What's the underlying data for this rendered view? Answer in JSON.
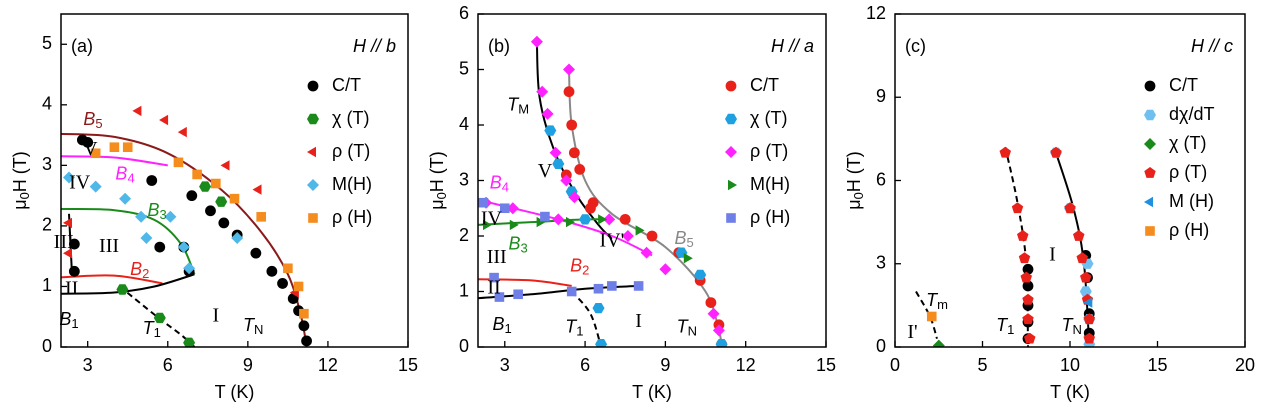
{
  "chart_data": [
    {
      "type": "scatter",
      "title": "(a)",
      "legend_title": "H // b",
      "xlabel": "T (K)",
      "ylabel": {
        "text": "μ",
        "sub": "0",
        "after": "H (T)"
      },
      "xlim": [
        2,
        15
      ],
      "ylim": [
        0,
        5.5
      ],
      "xticks": [
        3,
        6,
        9,
        12,
        15
      ],
      "yticks": [
        0,
        1,
        2,
        3,
        4,
        5
      ],
      "series": [
        {
          "name": "C/T",
          "color": "#000000",
          "marker": "circle",
          "x": [
            2.8,
            3.0,
            5.4,
            6.9,
            7.6,
            8.1,
            8.6,
            9.3,
            9.9,
            10.3,
            10.7,
            10.9,
            11.1,
            11.2,
            2.5,
            2.5,
            5.7,
            6.6,
            6.8
          ],
          "y": [
            3.42,
            3.38,
            2.75,
            2.5,
            2.25,
            2.05,
            1.85,
            1.55,
            1.25,
            1.05,
            0.8,
            0.6,
            0.35,
            0.1,
            1.25,
            1.7,
            1.65,
            1.65,
            1.25
          ]
        },
        {
          "name": "χ (T)",
          "color": "#1a8a1a",
          "marker": "hexagon",
          "x": [
            4.3,
            5.7,
            6.8,
            7.4,
            8.0
          ],
          "y": [
            0.95,
            0.48,
            0.07,
            2.65,
            2.4
          ]
        },
        {
          "name": "ρ (T)",
          "color": "#e8221a",
          "marker": "tri-left",
          "x": [
            4.9,
            5.9,
            6.6,
            8.2,
            9.4,
            10.8,
            2.3,
            2.3
          ],
          "y": [
            3.9,
            3.75,
            3.55,
            3.0,
            2.6,
            0.9,
            1.55,
            2.05
          ]
        },
        {
          "name": "M(H)",
          "color": "#4fb8e8",
          "marker": "diamond",
          "x": [
            2.3,
            3.3,
            4.4,
            5.0,
            5.2,
            6.1,
            6.6,
            6.8,
            8.6
          ],
          "y": [
            2.8,
            2.65,
            2.45,
            2.15,
            1.8,
            2.15,
            1.65,
            1.3,
            1.8
          ]
        },
        {
          "name": "ρ (H)",
          "color": "#f58c1e",
          "marker": "square",
          "x": [
            3.3,
            4.0,
            4.5,
            6.4,
            7.1,
            7.8,
            8.5,
            9.5,
            10.5,
            10.9,
            11.1
          ],
          "y": [
            3.2,
            3.3,
            3.3,
            3.05,
            2.85,
            2.7,
            2.45,
            2.15,
            1.3,
            1.0,
            0.55
          ]
        }
      ],
      "lines": [
        {
          "color": "#8b1a1a",
          "dash": false,
          "x": [
            2,
            4,
            6,
            8,
            9.5,
            10.5,
            11,
            11.2
          ],
          "y": [
            3.52,
            3.47,
            3.2,
            2.6,
            1.9,
            1.2,
            0.5,
            0
          ]
        },
        {
          "color": "#ff22ff",
          "dash": false,
          "x": [
            2,
            4,
            6
          ],
          "y": [
            3.15,
            3.13,
            3.0
          ]
        },
        {
          "color": "#1a8a1a",
          "dash": false,
          "x": [
            2,
            4,
            5.5,
            6.5,
            7.0
          ],
          "y": [
            2.28,
            2.26,
            2.1,
            1.7,
            1.2
          ]
        },
        {
          "color": "#e8221a",
          "dash": false,
          "x": [
            2,
            4,
            5.8
          ],
          "y": [
            1.15,
            1.18,
            1.05
          ]
        },
        {
          "color": "#000000",
          "dash": false,
          "x": [
            2,
            4,
            5.5,
            7.0
          ],
          "y": [
            0.88,
            0.9,
            1.0,
            1.2
          ]
        },
        {
          "color": "#000000",
          "dash": false,
          "x": [
            2.4,
            2.3
          ],
          "y": [
            1.3,
            2.2
          ]
        },
        {
          "color": "#000000",
          "dash": true,
          "x": [
            4.2,
            5.6,
            6.5,
            7.0
          ],
          "y": [
            1.0,
            0.5,
            0.2,
            0
          ]
        }
      ],
      "annotations": [
        {
          "text": "B",
          "sub": "5",
          "color": "#8b1a1a"
        },
        {
          "text": "B",
          "sub": "4",
          "color": "#ff22ff"
        },
        {
          "text": "B",
          "sub": "3",
          "color": "#1a8a1a"
        },
        {
          "text": "B",
          "sub": "2",
          "color": "#e8221a"
        },
        {
          "text": "B",
          "sub": "1",
          "color": "#000000"
        },
        {
          "text": "T",
          "sub": "1",
          "color": "#000000"
        },
        {
          "text": "T",
          "sub": "N",
          "color": "#000000"
        },
        {
          "text": "I",
          "color": "#000000"
        },
        {
          "text": "II",
          "color": "#000000"
        },
        {
          "text": "III",
          "color": "#000000"
        },
        {
          "text": "III",
          "color": "#000000"
        },
        {
          "text": "IV",
          "color": "#000000"
        },
        {
          "text": "V",
          "color": "#000000"
        }
      ]
    },
    {
      "type": "scatter",
      "title": "(b)",
      "legend_title": "H // a",
      "xlabel": "T (K)",
      "ylabel": {
        "text": "μ",
        "sub": "0",
        "after": "H (T)"
      },
      "xlim": [
        2,
        15
      ],
      "ylim": [
        0,
        6
      ],
      "xticks": [
        3,
        6,
        9,
        12,
        15
      ],
      "yticks": [
        0,
        1,
        2,
        3,
        4,
        5,
        6
      ],
      "series": [
        {
          "name": "C/T",
          "color": "#e8221a",
          "marker": "circle",
          "x": [
            5.4,
            5.5,
            5.6,
            5.8,
            6.3,
            7.5,
            8.5,
            9.5,
            10.3,
            10.7,
            11.0,
            11.1,
            5.3,
            6.2
          ],
          "y": [
            4.6,
            4.0,
            3.5,
            3.2,
            2.6,
            2.3,
            2.0,
            1.7,
            1.2,
            0.8,
            0.4,
            0.05,
            3.1,
            2.5
          ]
        },
        {
          "name": "χ (T)",
          "color": "#1fa0e0",
          "marker": "hexagon",
          "x": [
            4.7,
            5.0,
            5.5,
            6.0,
            6.5,
            6.6,
            9.6,
            10.3,
            11.1
          ],
          "y": [
            3.9,
            3.3,
            2.8,
            2.3,
            0.7,
            0.05,
            1.7,
            1.3,
            0.05
          ]
        },
        {
          "name": "ρ (T)",
          "color": "#ff22ff",
          "marker": "diamond",
          "x": [
            4.2,
            5.4,
            4.4,
            4.6,
            4.9,
            5.3,
            5.6,
            6.9,
            7.6,
            8.3,
            9.0,
            10.8,
            11.0,
            2.3,
            3.3,
            5.0
          ],
          "y": [
            5.5,
            5.0,
            4.6,
            4.2,
            3.5,
            3.0,
            2.7,
            2.3,
            2.0,
            1.7,
            1.4,
            0.6,
            0.3,
            2.6,
            2.5,
            2.3
          ]
        },
        {
          "name": "M(H)",
          "color": "#1a8a1a",
          "marker": "tri-right",
          "x": [
            2.3,
            3.3,
            4.3,
            5.4,
            6.6,
            8.0,
            9.8
          ],
          "y": [
            2.2,
            2.2,
            2.25,
            2.25,
            2.3,
            2.1,
            1.6
          ]
        },
        {
          "name": "ρ (H)",
          "color": "#6f7fe8",
          "marker": "square",
          "x": [
            2.2,
            2.6,
            3.0,
            3.5,
            4.5,
            5.5,
            6.5,
            7.0,
            8.0,
            2.8
          ],
          "y": [
            2.6,
            1.25,
            2.5,
            0.95,
            2.35,
            1.0,
            1.05,
            1.1,
            1.1,
            0.9
          ]
        }
      ],
      "lines": [
        {
          "color": "#888888",
          "dash": false,
          "x": [
            5.4,
            5.5,
            6.0,
            7.0,
            9.0,
            10.5,
            11.0,
            11.1
          ],
          "y": [
            5.0,
            4.0,
            3.0,
            2.4,
            1.8,
            1.0,
            0.3,
            0
          ]
        },
        {
          "color": "#000000",
          "dash": false,
          "x": [
            4.2,
            4.3,
            4.8,
            5.6,
            6.5,
            7.0
          ],
          "y": [
            5.5,
            4.5,
            3.6,
            2.8,
            2.2,
            1.95
          ]
        },
        {
          "color": "#ff22ff",
          "dash": false,
          "x": [
            2,
            5,
            7,
            8.5
          ],
          "y": [
            2.65,
            2.3,
            2.0,
            1.65
          ]
        },
        {
          "color": "#1a8a1a",
          "dash": false,
          "x": [
            2,
            4,
            6,
            6.8
          ],
          "y": [
            2.2,
            2.25,
            2.3,
            2.3
          ]
        },
        {
          "color": "#e8221a",
          "dash": false,
          "x": [
            2,
            4,
            5.5
          ],
          "y": [
            1.22,
            1.2,
            1.1
          ]
        },
        {
          "color": "#000000",
          "dash": false,
          "x": [
            2,
            4,
            6,
            8
          ],
          "y": [
            0.88,
            0.95,
            1.05,
            1.1
          ]
        },
        {
          "color": "#000000",
          "dash": true,
          "x": [
            5.5,
            6.2,
            6.6
          ],
          "y": [
            1.0,
            0.6,
            0
          ]
        }
      ],
      "annotations": [
        {
          "text": "T",
          "sub": "M",
          "color": "#000000"
        },
        {
          "text": "V",
          "color": "#000000"
        },
        {
          "text": "B",
          "sub": "4",
          "color": "#ff22ff"
        },
        {
          "text": "IV",
          "color": "#000000"
        },
        {
          "text": "B",
          "sub": "3",
          "color": "#1a8a1a"
        },
        {
          "text": "IV'",
          "color": "#000000"
        },
        {
          "text": "B",
          "sub": "5",
          "color": "#888888"
        },
        {
          "text": "III",
          "color": "#000000"
        },
        {
          "text": "B",
          "sub": "2",
          "color": "#e8221a"
        },
        {
          "text": "II",
          "color": "#000000"
        },
        {
          "text": "B",
          "sub": "1",
          "color": "#000000"
        },
        {
          "text": "T",
          "sub": "1",
          "color": "#000000"
        },
        {
          "text": "I",
          "color": "#000000"
        },
        {
          "text": "T",
          "sub": "N",
          "color": "#000000"
        }
      ]
    },
    {
      "type": "scatter",
      "title": "(c)",
      "legend_title": "H // c",
      "xlabel": "T (K)",
      "ylabel": {
        "text": "μ",
        "sub": "0",
        "after": "H (T)"
      },
      "xlim": [
        0,
        20
      ],
      "ylim": [
        0,
        12
      ],
      "xticks": [
        0,
        5,
        10,
        15,
        20
      ],
      "yticks": [
        0,
        3,
        6,
        9,
        12
      ],
      "series": [
        {
          "name": "C/T",
          "color": "#000000",
          "marker": "circle",
          "x": [
            7.6,
            7.6,
            7.6,
            7.6,
            7.6,
            11.1,
            11.1,
            11.0,
            10.9
          ],
          "y": [
            0.3,
            0.9,
            1.5,
            2.2,
            2.8,
            0.5,
            1.2,
            2.5,
            3.3
          ]
        },
        {
          "name": "dχ/dT",
          "color": "#6fc0f0",
          "marker": "hexagon",
          "x": [
            11.1,
            11.1,
            10.9,
            11.0,
            9.2,
            10.0
          ],
          "y": [
            0.1,
            1.0,
            2.0,
            3.0,
            7.0,
            5.0
          ]
        },
        {
          "name": "χ (T)",
          "color": "#1a8a1a",
          "marker": "diamond",
          "x": [
            2.5
          ],
          "y": [
            0.05
          ]
        },
        {
          "name": "ρ (T)",
          "color": "#e8221a",
          "marker": "pentagon",
          "x": [
            6.3,
            7.0,
            7.3,
            7.4,
            7.5,
            7.6,
            7.6,
            7.7,
            9.2,
            10.0,
            10.5,
            10.7,
            10.9,
            11.0,
            11.1,
            11.1
          ],
          "y": [
            7.0,
            5.0,
            4.0,
            3.2,
            2.5,
            1.7,
            1.0,
            0.3,
            7.0,
            5.0,
            4.0,
            3.2,
            2.5,
            1.7,
            1.0,
            0.3
          ]
        },
        {
          "name": "M (H)",
          "color": "#1f90e0",
          "marker": "tri-left",
          "x": [
            11.1
          ],
          "y": [
            1.6
          ]
        },
        {
          "name": "ρ (H)",
          "color": "#f58c1e",
          "marker": "square",
          "x": [
            2.1
          ],
          "y": [
            1.1
          ]
        }
      ],
      "lines": [
        {
          "color": "#000000",
          "dash": true,
          "x": [
            6.3,
            7.0,
            7.5,
            7.6
          ],
          "y": [
            7.2,
            5.2,
            3.0,
            0
          ]
        },
        {
          "color": "#000000",
          "dash": false,
          "x": [
            9.2,
            10.2,
            10.8,
            11.1
          ],
          "y": [
            7.0,
            5.0,
            3.0,
            0
          ]
        },
        {
          "color": "#000000",
          "dash": true,
          "x": [
            1.2,
            2.0,
            2.4
          ],
          "y": [
            2.0,
            1.1,
            0.3
          ]
        }
      ],
      "annotations": [
        {
          "text": "I",
          "color": "#000000"
        },
        {
          "text": "T",
          "sub": "1",
          "color": "#000000"
        },
        {
          "text": "T",
          "sub": "N",
          "color": "#000000"
        },
        {
          "text": "T",
          "sub": "m",
          "color": "#000000"
        },
        {
          "text": "I'",
          "color": "#000000"
        }
      ]
    }
  ]
}
